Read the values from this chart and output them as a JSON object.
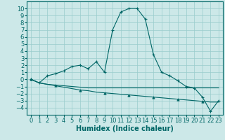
{
  "title": "",
  "xlabel": "Humidex (Indice chaleur)",
  "background_color": "#cce8e8",
  "grid_color": "#99cccc",
  "line_color": "#006666",
  "xlim": [
    -0.5,
    23.5
  ],
  "ylim": [
    -5,
    11
  ],
  "xticks": [
    0,
    1,
    2,
    3,
    4,
    5,
    6,
    7,
    8,
    9,
    10,
    11,
    12,
    13,
    14,
    15,
    16,
    17,
    18,
    19,
    20,
    21,
    22,
    23
  ],
  "yticks": [
    -4,
    -3,
    -2,
    -1,
    0,
    1,
    2,
    3,
    4,
    5,
    6,
    7,
    8,
    9,
    10
  ],
  "main_x": [
    0,
    1,
    2,
    3,
    4,
    5,
    6,
    7,
    8,
    9,
    10,
    11,
    12,
    13,
    14,
    15,
    16,
    17,
    18,
    19,
    20,
    21,
    22,
    23
  ],
  "main_y": [
    0,
    -0.5,
    0.5,
    0.8,
    1.2,
    1.8,
    2.0,
    1.5,
    2.5,
    1.0,
    7.0,
    9.5,
    10.0,
    10.0,
    8.5,
    3.5,
    1.0,
    0.5,
    -0.2,
    -1.0,
    -1.2,
    -2.5,
    -4.5,
    -3.0
  ],
  "flat_x": [
    0,
    1,
    2,
    3,
    4,
    5,
    6,
    7,
    8,
    9,
    10,
    11,
    12,
    13,
    14,
    15,
    16,
    17,
    18,
    19,
    20,
    21,
    22,
    23
  ],
  "flat_y": [
    0,
    -0.5,
    -0.7,
    -0.8,
    -0.9,
    -1.0,
    -1.1,
    -1.2,
    -1.2,
    -1.2,
    -1.2,
    -1.2,
    -1.2,
    -1.2,
    -1.2,
    -1.2,
    -1.2,
    -1.2,
    -1.2,
    -1.2,
    -1.2,
    -1.2,
    -1.2,
    -1.2
  ],
  "desc_x": [
    0,
    1,
    2,
    3,
    4,
    5,
    6,
    7,
    8,
    9,
    10,
    11,
    12,
    13,
    14,
    15,
    16,
    17,
    18,
    19,
    20,
    21,
    22,
    23
  ],
  "desc_y": [
    0,
    -0.5,
    -0.7,
    -0.9,
    -1.1,
    -1.3,
    -1.5,
    -1.6,
    -1.8,
    -1.9,
    -2.0,
    -2.1,
    -2.2,
    -2.3,
    -2.4,
    -2.5,
    -2.6,
    -2.7,
    -2.8,
    -2.9,
    -3.0,
    -3.1,
    -3.2,
    -3.2
  ],
  "font_size_label": 7,
  "font_size_tick": 6
}
